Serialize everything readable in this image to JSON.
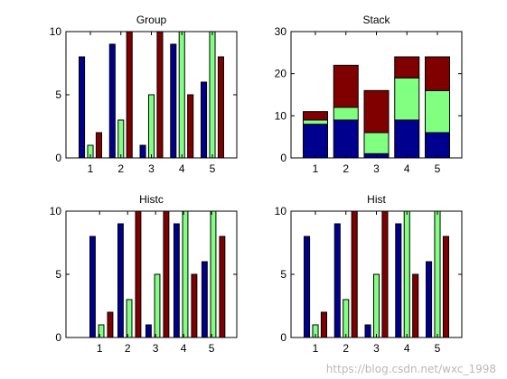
{
  "watermark": "https://blog.csdn.net/wxc_1998",
  "colors": {
    "series1": "#00008F",
    "series2": "#80FF80",
    "series3": "#800000"
  },
  "chart_data": [
    {
      "type": "bar",
      "mode": "grouped",
      "title": "Group",
      "categories": [
        "1",
        "2",
        "3",
        "4",
        "5"
      ],
      "series": [
        {
          "values": [
            8,
            9,
            1,
            9,
            6
          ]
        },
        {
          "values": [
            1,
            3,
            5,
            10,
            10
          ]
        },
        {
          "values": [
            2,
            10,
            10,
            5,
            8
          ]
        }
      ],
      "ylim": [
        0,
        10
      ],
      "yticks": [
        0,
        5,
        10
      ],
      "xlim": [
        0.2,
        5.8
      ],
      "grid": false
    },
    {
      "type": "bar",
      "mode": "stacked",
      "title": "Stack",
      "categories": [
        "1",
        "2",
        "3",
        "4",
        "5"
      ],
      "series": [
        {
          "values": [
            8,
            9,
            1,
            9,
            6
          ]
        },
        {
          "values": [
            1,
            3,
            5,
            10,
            10
          ]
        },
        {
          "values": [
            2,
            10,
            10,
            5,
            8
          ]
        }
      ],
      "ylim": [
        0,
        30
      ],
      "yticks": [
        0,
        10,
        20,
        30
      ],
      "xlim": [
        0.2,
        5.8
      ],
      "grid": false
    },
    {
      "type": "bar",
      "mode": "histc",
      "title": "Histc",
      "categories": [
        "1",
        "2",
        "3",
        "4",
        "5"
      ],
      "series": [
        {
          "values": [
            8,
            9,
            1,
            9,
            6
          ]
        },
        {
          "values": [
            1,
            3,
            5,
            10,
            10
          ]
        },
        {
          "values": [
            2,
            10,
            10,
            5,
            8
          ]
        }
      ],
      "ylim": [
        0,
        10
      ],
      "yticks": [
        0,
        5,
        10
      ],
      "xlim": [
        -0.2,
        5.9
      ],
      "grid": false
    },
    {
      "type": "bar",
      "mode": "hist",
      "title": "Hist",
      "categories": [
        "1",
        "2",
        "3",
        "4",
        "5"
      ],
      "series": [
        {
          "values": [
            8,
            9,
            1,
            9,
            6
          ]
        },
        {
          "values": [
            1,
            3,
            5,
            10,
            10
          ]
        },
        {
          "values": [
            2,
            10,
            10,
            5,
            8
          ]
        }
      ],
      "ylim": [
        0,
        10
      ],
      "yticks": [
        0,
        5,
        10
      ],
      "xlim": [
        0.2,
        5.8
      ],
      "grid": false
    }
  ]
}
